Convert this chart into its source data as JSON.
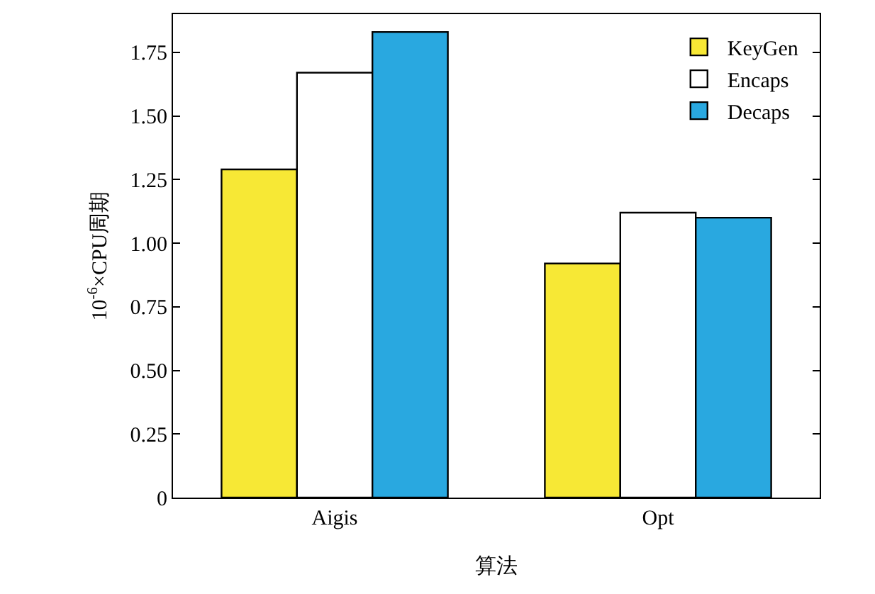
{
  "chart_data": {
    "type": "bar",
    "xlabel": "算法",
    "ylabel": "10$^{-6}$×CPU周期",
    "categories": [
      "Aigis",
      "Opt"
    ],
    "series": [
      {
        "name": "KeyGen",
        "color": "#f7e835",
        "values": [
          1.29,
          0.92
        ]
      },
      {
        "name": "Encaps",
        "color": "#ffffff",
        "values": [
          1.67,
          1.12
        ]
      },
      {
        "name": "Decaps",
        "color": "#29a8e0",
        "values": [
          1.83,
          1.1
        ]
      }
    ],
    "ylim": [
      0,
      1.9
    ],
    "yticks": [
      {
        "value": 0,
        "label": "0"
      },
      {
        "value": 0.25,
        "label": "0.25"
      },
      {
        "value": 0.5,
        "label": "0.50"
      },
      {
        "value": 0.75,
        "label": "0.75"
      },
      {
        "value": 1,
        "label": "1.00"
      },
      {
        "value": 1.25,
        "label": "1.25"
      },
      {
        "value": 1.5,
        "label": "1.50"
      },
      {
        "value": 1.75,
        "label": "1.75"
      }
    ],
    "grid": false,
    "legend": "top right"
  }
}
